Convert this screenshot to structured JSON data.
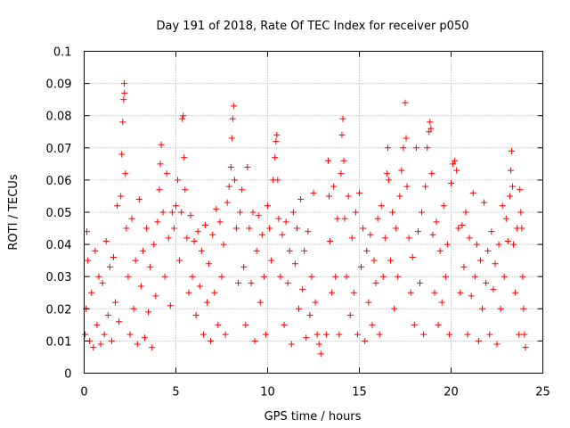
{
  "chart_data": {
    "type": "scatter",
    "title": "Day 191 of 2018, Rate Of TEC Index for receiver p050",
    "xlabel": "GPS time / hours",
    "ylabel": "ROTI / TECUs",
    "xlim": [
      0,
      25
    ],
    "ylim": [
      0,
      0.1
    ],
    "x_ticks": [
      0,
      5,
      10,
      15,
      20,
      25
    ],
    "x_tick_labels": [
      "0",
      "5",
      "10",
      "15",
      "20",
      "25"
    ],
    "y_ticks": [
      0,
      0.01,
      0.02,
      0.03,
      0.04,
      0.05,
      0.06,
      0.07,
      0.08,
      0.09,
      0.1
    ],
    "y_tick_labels": [
      "0",
      "0.01",
      "0.02",
      "0.03",
      "0.04",
      "0.05",
      "0.06",
      "0.07",
      "0.08",
      "0.09",
      "0.1"
    ],
    "grid": true,
    "marker": "+",
    "series": [
      {
        "name": "ROTI",
        "color": "#ff0000",
        "points": [
          [
            0.05,
            0.012
          ],
          [
            0.1,
            0.02
          ],
          [
            0.15,
            0.044
          ],
          [
            0.2,
            0.035
          ],
          [
            0.3,
            0.01
          ],
          [
            0.4,
            0.025
          ],
          [
            0.5,
            0.008
          ],
          [
            0.6,
            0.038
          ],
          [
            0.7,
            0.015
          ],
          [
            0.8,
            0.03
          ],
          [
            0.9,
            0.009
          ],
          [
            1.0,
            0.028
          ],
          [
            1.1,
            0.012
          ],
          [
            1.2,
            0.041
          ],
          [
            1.3,
            0.018
          ],
          [
            1.4,
            0.033
          ],
          [
            1.5,
            0.01
          ],
          [
            1.6,
            0.036
          ],
          [
            1.7,
            0.022
          ],
          [
            1.8,
            0.052
          ],
          [
            1.9,
            0.016
          ],
          [
            2.0,
            0.055
          ],
          [
            2.05,
            0.068
          ],
          [
            2.1,
            0.078
          ],
          [
            2.15,
            0.085
          ],
          [
            2.18,
            0.09
          ],
          [
            2.2,
            0.087
          ],
          [
            2.25,
            0.062
          ],
          [
            2.3,
            0.045
          ],
          [
            2.4,
            0.03
          ],
          [
            2.5,
            0.012
          ],
          [
            2.6,
            0.048
          ],
          [
            2.7,
            0.02
          ],
          [
            2.8,
            0.035
          ],
          [
            2.9,
            0.009
          ],
          [
            3.0,
            0.054
          ],
          [
            3.1,
            0.027
          ],
          [
            3.2,
            0.038
          ],
          [
            3.3,
            0.011
          ],
          [
            3.4,
            0.045
          ],
          [
            3.5,
            0.019
          ],
          [
            3.6,
            0.033
          ],
          [
            3.7,
            0.008
          ],
          [
            3.8,
            0.04
          ],
          [
            3.9,
            0.024
          ],
          [
            4.0,
            0.047
          ],
          [
            4.1,
            0.057
          ],
          [
            4.15,
            0.065
          ],
          [
            4.2,
            0.071
          ],
          [
            4.3,
            0.05
          ],
          [
            4.4,
            0.03
          ],
          [
            4.5,
            0.062
          ],
          [
            4.6,
            0.042
          ],
          [
            4.7,
            0.021
          ],
          [
            4.8,
            0.05
          ],
          [
            4.9,
            0.045
          ],
          [
            5.0,
            0.052
          ],
          [
            5.1,
            0.06
          ],
          [
            5.2,
            0.035
          ],
          [
            5.3,
            0.05
          ],
          [
            5.35,
            0.079
          ],
          [
            5.4,
            0.08
          ],
          [
            5.45,
            0.067
          ],
          [
            5.5,
            0.057
          ],
          [
            5.6,
            0.042
          ],
          [
            5.7,
            0.025
          ],
          [
            5.8,
            0.049
          ],
          [
            5.9,
            0.03
          ],
          [
            6.0,
            0.041
          ],
          [
            6.1,
            0.018
          ],
          [
            6.2,
            0.044
          ],
          [
            6.3,
            0.027
          ],
          [
            6.4,
            0.038
          ],
          [
            6.5,
            0.012
          ],
          [
            6.6,
            0.046
          ],
          [
            6.7,
            0.022
          ],
          [
            6.8,
            0.034
          ],
          [
            6.9,
            0.01
          ],
          [
            7.0,
            0.043
          ],
          [
            7.1,
            0.025
          ],
          [
            7.2,
            0.051
          ],
          [
            7.3,
            0.015
          ],
          [
            7.4,
            0.047
          ],
          [
            7.5,
            0.03
          ],
          [
            7.6,
            0.04
          ],
          [
            7.7,
            0.012
          ],
          [
            7.8,
            0.053
          ],
          [
            7.9,
            0.058
          ],
          [
            8.0,
            0.064
          ],
          [
            8.05,
            0.073
          ],
          [
            8.1,
            0.079
          ],
          [
            8.15,
            0.083
          ],
          [
            8.2,
            0.06
          ],
          [
            8.3,
            0.045
          ],
          [
            8.4,
            0.028
          ],
          [
            8.5,
            0.05
          ],
          [
            8.6,
            0.057
          ],
          [
            8.7,
            0.033
          ],
          [
            8.8,
            0.015
          ],
          [
            8.9,
            0.064
          ],
          [
            9.0,
            0.045
          ],
          [
            9.1,
            0.028
          ],
          [
            9.2,
            0.05
          ],
          [
            9.3,
            0.01
          ],
          [
            9.4,
            0.038
          ],
          [
            9.5,
            0.049
          ],
          [
            9.6,
            0.022
          ],
          [
            9.7,
            0.043
          ],
          [
            9.8,
            0.03
          ],
          [
            9.9,
            0.012
          ],
          [
            10.0,
            0.052
          ],
          [
            10.1,
            0.045
          ],
          [
            10.2,
            0.035
          ],
          [
            10.3,
            0.06
          ],
          [
            10.4,
            0.067
          ],
          [
            10.45,
            0.072
          ],
          [
            10.5,
            0.074
          ],
          [
            10.55,
            0.06
          ],
          [
            10.6,
            0.048
          ],
          [
            10.7,
            0.03
          ],
          [
            10.8,
            0.043
          ],
          [
            10.9,
            0.015
          ],
          [
            11.0,
            0.047
          ],
          [
            11.1,
            0.028
          ],
          [
            11.2,
            0.038
          ],
          [
            11.3,
            0.009
          ],
          [
            11.4,
            0.05
          ],
          [
            11.5,
            0.034
          ],
          [
            11.6,
            0.045
          ],
          [
            11.7,
            0.02
          ],
          [
            11.8,
            0.054
          ],
          [
            11.9,
            0.026
          ],
          [
            12.0,
            0.038
          ],
          [
            12.1,
            0.011
          ],
          [
            12.2,
            0.044
          ],
          [
            12.3,
            0.018
          ],
          [
            12.4,
            0.03
          ],
          [
            12.5,
            0.056
          ],
          [
            12.6,
            0.022
          ],
          [
            12.7,
            0.012
          ],
          [
            12.8,
            0.009
          ],
          [
            12.9,
            0.006
          ],
          [
            13.2,
            0.012
          ],
          [
            13.3,
            0.066
          ],
          [
            13.35,
            0.055
          ],
          [
            13.4,
            0.041
          ],
          [
            13.5,
            0.025
          ],
          [
            13.6,
            0.058
          ],
          [
            13.7,
            0.03
          ],
          [
            13.8,
            0.048
          ],
          [
            13.9,
            0.012
          ],
          [
            14.0,
            0.062
          ],
          [
            14.05,
            0.074
          ],
          [
            14.1,
            0.079
          ],
          [
            14.15,
            0.066
          ],
          [
            14.2,
            0.048
          ],
          [
            14.3,
            0.03
          ],
          [
            14.4,
            0.055
          ],
          [
            14.5,
            0.018
          ],
          [
            14.6,
            0.042
          ],
          [
            14.7,
            0.025
          ],
          [
            14.8,
            0.05
          ],
          [
            14.9,
            0.012
          ],
          [
            15.0,
            0.056
          ],
          [
            15.1,
            0.033
          ],
          [
            15.2,
            0.045
          ],
          [
            15.3,
            0.01
          ],
          [
            15.4,
            0.038
          ],
          [
            15.5,
            0.022
          ],
          [
            15.6,
            0.043
          ],
          [
            15.7,
            0.015
          ],
          [
            15.8,
            0.035
          ],
          [
            15.9,
            0.028
          ],
          [
            16.0,
            0.048
          ],
          [
            16.1,
            0.012
          ],
          [
            16.2,
            0.052
          ],
          [
            16.3,
            0.03
          ],
          [
            16.4,
            0.042
          ],
          [
            16.5,
            0.062
          ],
          [
            16.55,
            0.07
          ],
          [
            16.6,
            0.06
          ],
          [
            16.7,
            0.035
          ],
          [
            16.8,
            0.05
          ],
          [
            16.9,
            0.02
          ],
          [
            17.0,
            0.045
          ],
          [
            17.1,
            0.03
          ],
          [
            17.2,
            0.055
          ],
          [
            17.3,
            0.063
          ],
          [
            17.4,
            0.07
          ],
          [
            17.5,
            0.084
          ],
          [
            17.55,
            0.073
          ],
          [
            17.6,
            0.058
          ],
          [
            17.7,
            0.042
          ],
          [
            17.8,
            0.025
          ],
          [
            17.9,
            0.036
          ],
          [
            18.0,
            0.015
          ],
          [
            18.1,
            0.07
          ],
          [
            18.2,
            0.044
          ],
          [
            18.3,
            0.028
          ],
          [
            18.4,
            0.05
          ],
          [
            18.5,
            0.012
          ],
          [
            18.6,
            0.058
          ],
          [
            18.7,
            0.07
          ],
          [
            18.8,
            0.075
          ],
          [
            18.85,
            0.078
          ],
          [
            18.9,
            0.076
          ],
          [
            18.95,
            0.062
          ],
          [
            19.0,
            0.043
          ],
          [
            19.1,
            0.025
          ],
          [
            19.2,
            0.047
          ],
          [
            19.3,
            0.015
          ],
          [
            19.4,
            0.038
          ],
          [
            19.5,
            0.022
          ],
          [
            19.6,
            0.052
          ],
          [
            19.7,
            0.03
          ],
          [
            19.8,
            0.04
          ],
          [
            19.9,
            0.012
          ],
          [
            20.0,
            0.059
          ],
          [
            20.1,
            0.065
          ],
          [
            20.2,
            0.066
          ],
          [
            20.3,
            0.063
          ],
          [
            20.4,
            0.045
          ],
          [
            20.5,
            0.025
          ],
          [
            20.6,
            0.046
          ],
          [
            20.7,
            0.033
          ],
          [
            20.8,
            0.05
          ],
          [
            20.9,
            0.012
          ],
          [
            21.0,
            0.042
          ],
          [
            21.1,
            0.024
          ],
          [
            21.2,
            0.056
          ],
          [
            21.3,
            0.03
          ],
          [
            21.4,
            0.04
          ],
          [
            21.5,
            0.01
          ],
          [
            21.6,
            0.035
          ],
          [
            21.7,
            0.02
          ],
          [
            21.8,
            0.053
          ],
          [
            21.9,
            0.028
          ],
          [
            22.0,
            0.038
          ],
          [
            22.1,
            0.012
          ],
          [
            22.2,
            0.044
          ],
          [
            22.3,
            0.026
          ],
          [
            22.4,
            0.034
          ],
          [
            22.5,
            0.009
          ],
          [
            22.6,
            0.04
          ],
          [
            22.7,
            0.02
          ],
          [
            22.8,
            0.052
          ],
          [
            22.9,
            0.03
          ],
          [
            23.0,
            0.048
          ],
          [
            23.1,
            0.041
          ],
          [
            23.2,
            0.055
          ],
          [
            23.25,
            0.063
          ],
          [
            23.3,
            0.069
          ],
          [
            23.35,
            0.058
          ],
          [
            23.4,
            0.04
          ],
          [
            23.5,
            0.025
          ],
          [
            23.6,
            0.045
          ],
          [
            23.7,
            0.012
          ],
          [
            23.75,
            0.057
          ],
          [
            23.8,
            0.05
          ],
          [
            23.85,
            0.045
          ],
          [
            23.9,
            0.03
          ],
          [
            23.95,
            0.02
          ],
          [
            24.0,
            0.012
          ],
          [
            24.05,
            0.008
          ]
        ]
      }
    ]
  }
}
